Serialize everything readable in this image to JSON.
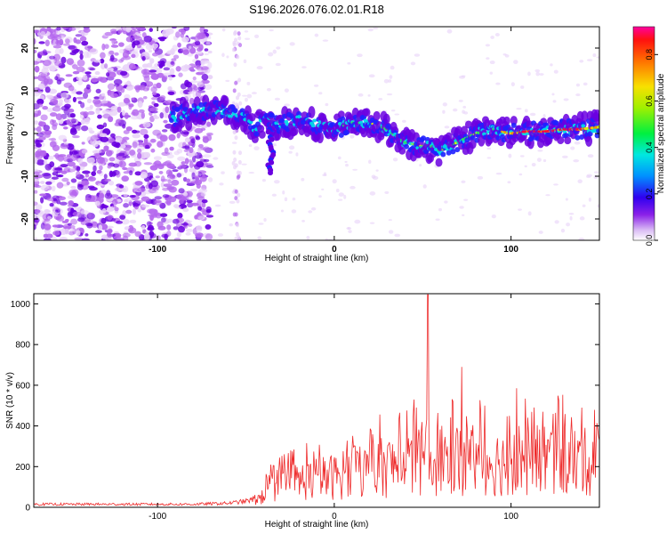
{
  "chart_data": [
    {
      "type": "heatmap",
      "title": "S196.2026.076.02.01.R18",
      "xlabel": "Height of straight line (km)",
      "ylabel": "Frequency (Hz)",
      "xlim": [
        -170,
        150
      ],
      "ylim": [
        -25,
        25
      ],
      "xticks": [
        -100,
        0,
        100
      ],
      "yticks": [
        -20,
        -10,
        0,
        10,
        20
      ],
      "colorbar": {
        "label": "Normalized spectral amplitude",
        "range": [
          0.0,
          0.92
        ],
        "ticks": [
          0.0,
          0.2,
          0.4,
          0.6,
          0.8
        ]
      },
      "ridge": {
        "x": [
          -90,
          -80,
          -70,
          -60,
          -50,
          -45,
          -40,
          -30,
          -20,
          -10,
          0,
          10,
          20,
          30,
          40,
          50,
          55,
          60,
          70,
          80,
          90,
          100,
          110,
          120,
          130,
          140,
          150
        ],
        "y": [
          4,
          5,
          5.5,
          5,
          4,
          1,
          3,
          2,
          3,
          2,
          1,
          2.5,
          2.5,
          1,
          -2,
          -3,
          -3,
          -4,
          -2,
          0,
          1,
          0,
          0.5,
          0.5,
          1,
          1,
          1.5
        ]
      }
    },
    {
      "type": "line",
      "xlabel": "Height of straight line (km)",
      "ylabel": "SNR (10 * v/v)",
      "xlim": [
        -170,
        150
      ],
      "ylim": [
        0,
        1050
      ],
      "xticks": [
        -100,
        0,
        100
      ],
      "yticks": [
        0,
        200,
        400,
        600,
        800,
        1000
      ],
      "series": [
        {
          "name": "SNR",
          "color": "#ee2a2a",
          "envelope_x": [
            -170,
            -140,
            -120,
            -100,
            -80,
            -60,
            -50,
            -45,
            -40,
            -39,
            -30,
            -20,
            -10,
            0,
            10,
            20,
            30,
            40,
            50,
            60,
            70,
            80,
            90,
            100,
            110,
            120,
            130,
            140,
            150
          ],
          "envelope_y": [
            15,
            15,
            15,
            15,
            15,
            20,
            30,
            40,
            50,
            100,
            110,
            130,
            140,
            150,
            170,
            180,
            200,
            210,
            220,
            230,
            240,
            230,
            220,
            220,
            230,
            240,
            230,
            220,
            230
          ],
          "peaks": [
            {
              "x": 53,
              "y": 1045
            },
            {
              "x": 72,
              "y": 690
            },
            {
              "x": 103,
              "y": 585
            },
            {
              "x": 45,
              "y": 530
            },
            {
              "x": 67,
              "y": 520
            },
            {
              "x": 85,
              "y": 500
            },
            {
              "x": 118,
              "y": 470
            }
          ]
        }
      ]
    }
  ],
  "colors": {
    "ridge_palette": [
      "#ffffff",
      "#e8d2f8",
      "#b466ee",
      "#6a00e0",
      "#2020ff",
      "#00d8e8",
      "#30e060",
      "#e0f000",
      "#ff9000",
      "#ff0040"
    ],
    "snr_line": "#ee2a2a"
  }
}
